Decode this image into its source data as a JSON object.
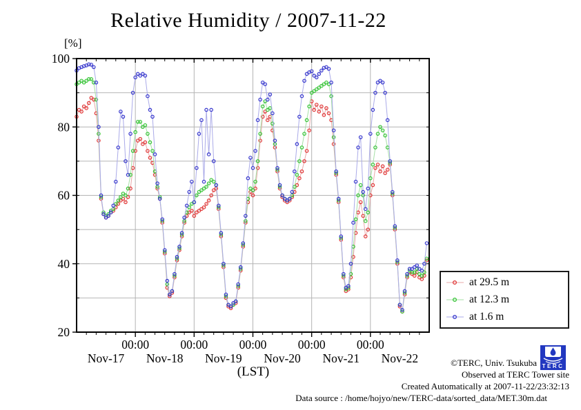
{
  "title": "Relative Humidity / 2007-11-22",
  "footer": {
    "copyright": "©TERC, Univ. Tsukuba",
    "observed": "Observed at TERC Tower site",
    "created": "Created Automatically at 2007-11-22/23:32:13",
    "datasource": "Data source : /home/hojyo/new/TERC-data/sorted_data/MET.30m.dat",
    "logo_text": "TERC"
  },
  "chart_data": {
    "type": "line",
    "title": "Relative Humidity / 2007-11-22",
    "unit_label": "[%]",
    "xlabel": "(LST)",
    "ylabel": "Relative Humidity [%]",
    "ylim": [
      20,
      100
    ],
    "y_ticks": [
      20,
      40,
      60,
      80,
      100
    ],
    "y_gridlines": [
      30,
      40,
      50,
      60,
      70,
      80,
      90
    ],
    "x_range_hours": 144,
    "hours_per_day": 24,
    "x_minor_tick_hours": 4,
    "sample_interval_hours": 1,
    "x_start": "2007-11-17 00:00",
    "x_end": "2007-11-23 00:00",
    "x_major_tick_labels": [
      "00:00",
      "00:00",
      "00:00",
      "00:00",
      "00:00"
    ],
    "x_day_labels": [
      "Nov-17",
      "Nov-18",
      "Nov-19",
      "Nov-20",
      "Nov-21",
      "Nov-22"
    ],
    "grid": true,
    "gridline_color": "#b4b4b4",
    "legend_position": "outside-right-bottom",
    "series": [
      {
        "label": "at 29.5 m",
        "marker": "open-circle",
        "marker_color": "#e03030",
        "line_color": "#e8a8a8",
        "values": [
          83,
          85,
          84.5,
          86,
          85.5,
          87,
          88.5,
          88,
          84,
          76,
          59,
          54.5,
          53.5,
          54,
          55,
          55.5,
          56.5,
          57.5,
          58.5,
          59,
          58,
          59.5,
          62,
          68,
          73,
          76,
          76.5,
          75,
          75.5,
          73,
          71,
          69.5,
          66,
          62,
          59,
          52,
          43,
          33,
          30.5,
          31.5,
          36,
          41,
          44,
          48,
          52,
          54,
          55,
          55.5,
          54,
          55,
          55.5,
          56,
          56.5,
          57.5,
          58.5,
          60,
          61.5,
          62,
          56,
          48,
          39,
          30,
          27.5,
          27,
          28,
          28.5,
          33,
          38,
          45,
          52,
          58,
          61,
          60,
          62,
          68,
          76,
          83,
          84.5,
          82,
          83,
          79,
          74,
          67,
          62,
          59.5,
          58.5,
          58,
          58.5,
          59.5,
          61,
          63,
          65,
          67,
          70,
          73,
          79,
          87.5,
          85,
          86.5,
          84.5,
          86,
          83.5,
          85.5,
          84,
          82,
          75,
          66,
          58,
          47,
          36,
          32,
          32.5,
          36,
          42,
          49,
          55,
          58,
          54,
          48,
          50,
          60,
          63,
          68,
          69,
          67,
          68.5,
          66.5,
          67.5,
          69,
          60,
          50,
          40,
          27.5,
          26,
          31,
          36,
          37.5,
          37,
          36.5,
          37.5,
          36,
          35.5,
          36.5,
          41
        ]
      },
      {
        "label": "at 12.3 m",
        "marker": "open-circle",
        "marker_color": "#2ec22e",
        "line_color": "#a6dfa6",
        "values": [
          92.5,
          93,
          93.5,
          93,
          93.5,
          94,
          94,
          93,
          88,
          78,
          59.5,
          55,
          54,
          54.5,
          55.5,
          56,
          57.5,
          58.5,
          59.5,
          60.5,
          60,
          62,
          66,
          73,
          78.5,
          81.5,
          81.5,
          80,
          80.5,
          78,
          75.5,
          73,
          67,
          62.5,
          59.5,
          52.5,
          43.5,
          34,
          31,
          32,
          36.5,
          41.5,
          44.5,
          48.5,
          52.5,
          55,
          56.5,
          57.5,
          58,
          60,
          61,
          61.5,
          62,
          62.5,
          63.5,
          64.5,
          64,
          63,
          56.5,
          48.5,
          39.5,
          30.5,
          28,
          27.5,
          28,
          29,
          33.5,
          38.5,
          45.5,
          52.5,
          59,
          62,
          61.5,
          64,
          70,
          78,
          86,
          87.5,
          85,
          85.5,
          81,
          75,
          67.5,
          62.5,
          60,
          59,
          58.5,
          59,
          60,
          62.5,
          66,
          70,
          74,
          78,
          82,
          86,
          90,
          90.5,
          91,
          91.5,
          92,
          92.5,
          93,
          92.5,
          89,
          77,
          66.5,
          58.5,
          47.5,
          36.5,
          32.5,
          33,
          37,
          45,
          53,
          60,
          63,
          60,
          52.5,
          55,
          65,
          69,
          74,
          78,
          80,
          79,
          77.5,
          74,
          69.5,
          60.5,
          50.5,
          40.5,
          28,
          26,
          31.5,
          36.5,
          38,
          37.5,
          37.5,
          38.5,
          37,
          36.5,
          37.5,
          41.5
        ]
      },
      {
        "label": "at 1.6 m",
        "marker": "open-circle",
        "marker_color": "#3232cc",
        "line_color": "#aaaae8",
        "values": [
          96.5,
          97.2,
          97.5,
          97.8,
          98,
          98.3,
          98.2,
          97.5,
          93,
          80,
          60,
          54.5,
          53.5,
          54,
          55,
          57,
          64,
          74,
          84.5,
          83,
          70,
          66,
          78,
          90,
          94.5,
          95.5,
          95,
          95.5,
          95,
          89,
          85,
          83,
          72,
          63.5,
          59,
          53,
          44,
          35,
          31,
          32,
          37,
          42,
          45,
          49,
          53.5,
          57,
          61,
          64,
          58,
          68,
          78,
          82,
          64,
          85,
          72,
          85,
          70,
          63,
          57,
          49,
          40,
          31,
          28,
          27.5,
          28.5,
          29,
          34,
          39,
          46,
          54,
          65,
          71,
          68,
          73,
          82,
          88,
          93,
          92.5,
          88,
          89.5,
          84,
          76,
          68,
          63,
          60,
          59,
          58.5,
          59,
          61,
          67,
          75,
          83,
          89,
          93.5,
          95.5,
          96,
          96.3,
          95,
          94.5,
          95.5,
          96.5,
          97.3,
          97.5,
          97,
          93,
          79,
          67,
          59,
          48,
          37,
          33,
          33.5,
          40,
          52,
          64,
          74,
          77,
          61,
          56,
          62,
          78,
          85,
          90,
          93,
          93.5,
          93,
          90,
          82,
          70,
          61,
          51,
          41,
          28,
          26.5,
          32,
          37,
          38.5,
          38.5,
          39,
          39.5,
          38.5,
          38,
          40,
          46
        ]
      }
    ]
  }
}
